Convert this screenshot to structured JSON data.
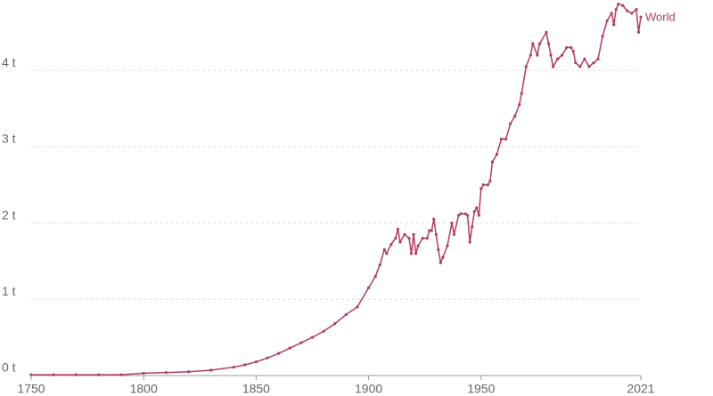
{
  "chart_data": {
    "type": "line",
    "x": [
      1750,
      1760,
      1770,
      1780,
      1790,
      1800,
      1810,
      1820,
      1830,
      1840,
      1845,
      1850,
      1855,
      1860,
      1865,
      1870,
      1875,
      1880,
      1885,
      1890,
      1895,
      1900,
      1903,
      1905,
      1907,
      1908,
      1910,
      1912,
      1913,
      1914,
      1916,
      1918,
      1919,
      1920,
      1921,
      1922,
      1924,
      1926,
      1927,
      1928,
      1929,
      1930,
      1931,
      1932,
      1933,
      1935,
      1937,
      1938,
      1940,
      1941,
      1943,
      1944,
      1945,
      1946,
      1947,
      1948,
      1949,
      1950,
      1951,
      1953,
      1954,
      1955,
      1957,
      1959,
      1961,
      1963,
      1965,
      1967,
      1968,
      1970,
      1972,
      1973,
      1975,
      1976,
      1979,
      1980,
      1981,
      1982,
      1984,
      1986,
      1988,
      1990,
      1991,
      1992,
      1994,
      1996,
      1998,
      2000,
      2002,
      2004,
      2006,
      2008,
      2009,
      2010,
      2011,
      2013,
      2015,
      2017,
      2019,
      2020,
      2021
    ],
    "series": [
      {
        "name": "World",
        "color": "#b13e5a",
        "values": [
          0.01,
          0.01,
          0.01,
          0.01,
          0.01,
          0.03,
          0.04,
          0.05,
          0.07,
          0.11,
          0.14,
          0.18,
          0.23,
          0.29,
          0.36,
          0.43,
          0.5,
          0.58,
          0.68,
          0.8,
          0.9,
          1.15,
          1.3,
          1.45,
          1.65,
          1.6,
          1.72,
          1.8,
          1.92,
          1.75,
          1.85,
          1.8,
          1.6,
          1.85,
          1.6,
          1.7,
          1.8,
          1.8,
          1.9,
          1.9,
          2.05,
          1.85,
          1.65,
          1.48,
          1.55,
          1.7,
          2.0,
          1.85,
          2.1,
          2.12,
          2.12,
          2.1,
          1.75,
          1.95,
          2.15,
          2.2,
          2.1,
          2.45,
          2.5,
          2.5,
          2.55,
          2.8,
          2.9,
          3.1,
          3.1,
          3.3,
          3.4,
          3.55,
          3.7,
          4.05,
          4.2,
          4.35,
          4.2,
          4.35,
          4.5,
          4.35,
          4.2,
          4.05,
          4.15,
          4.2,
          4.3,
          4.3,
          4.25,
          4.1,
          4.05,
          4.15,
          4.05,
          4.1,
          4.15,
          4.45,
          4.65,
          4.75,
          4.6,
          4.8,
          4.87,
          4.85,
          4.78,
          4.75,
          4.8,
          4.5,
          4.7
        ]
      }
    ],
    "xlim": [
      1750,
      2021
    ],
    "xticks": [
      1750,
      1800,
      1850,
      1900,
      1950,
      2021
    ],
    "ylim": [
      0,
      4.9
    ],
    "yticks": [
      {
        "value": 0,
        "label": "0 t"
      },
      {
        "value": 1,
        "label": "1 t"
      },
      {
        "value": 2,
        "label": "2 t"
      },
      {
        "value": 3,
        "label": "3 t"
      },
      {
        "value": 4,
        "label": "4 t"
      }
    ],
    "grid": true
  }
}
